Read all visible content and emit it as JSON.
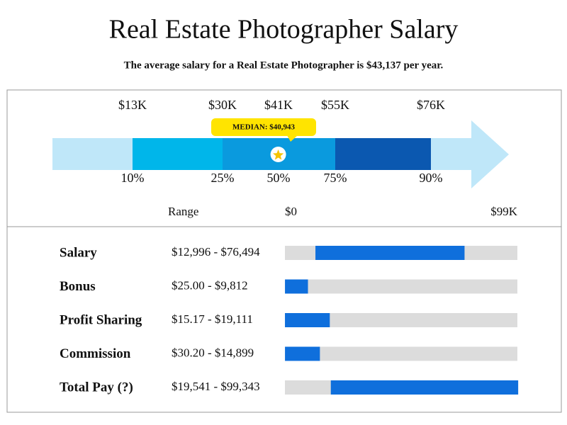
{
  "header": {
    "title": "Real Estate Photographer Salary",
    "subtitle": "The average salary for a Real Estate Photographer is $43,137 per year."
  },
  "chart_data": [
    {
      "type": "percentile",
      "categories": [
        "10%",
        "25%",
        "50%",
        "75%",
        "90%"
      ],
      "values": [
        13000,
        30000,
        41000,
        55000,
        76000
      ],
      "value_labels": [
        "$13K",
        "$30K",
        "$41K",
        "$55K",
        "$76K"
      ],
      "median": 40943,
      "median_label": "MEDIAN: $40,943",
      "colors": [
        "#00b6ea",
        "#0a9ade",
        "#0a9ade",
        "#0b58b0"
      ],
      "base_color": "#bfe7f9",
      "callout_color": "#ffe400"
    },
    {
      "type": "range",
      "axis_label": "Range",
      "xlim": [
        0,
        99000
      ],
      "xticks": [
        {
          "value": 0,
          "label": "$0"
        },
        {
          "value": 99000,
          "label": "$99K"
        }
      ],
      "categories": [
        "Salary",
        "Bonus",
        "Profit Sharing",
        "Commission",
        "Total Pay (?)"
      ],
      "low": [
        12996,
        25,
        15.17,
        30.2,
        19541
      ],
      "high": [
        76494,
        9812,
        19111,
        14899,
        99343
      ],
      "value_labels": [
        "$12,996 - $76,494",
        "$25.00 - $9,812",
        "$15.17 - $19,111",
        "$30.20 - $14,899",
        "$19,541 - $99,343"
      ],
      "color": "#0f6fdc",
      "track_color": "#dcdcdc"
    }
  ]
}
